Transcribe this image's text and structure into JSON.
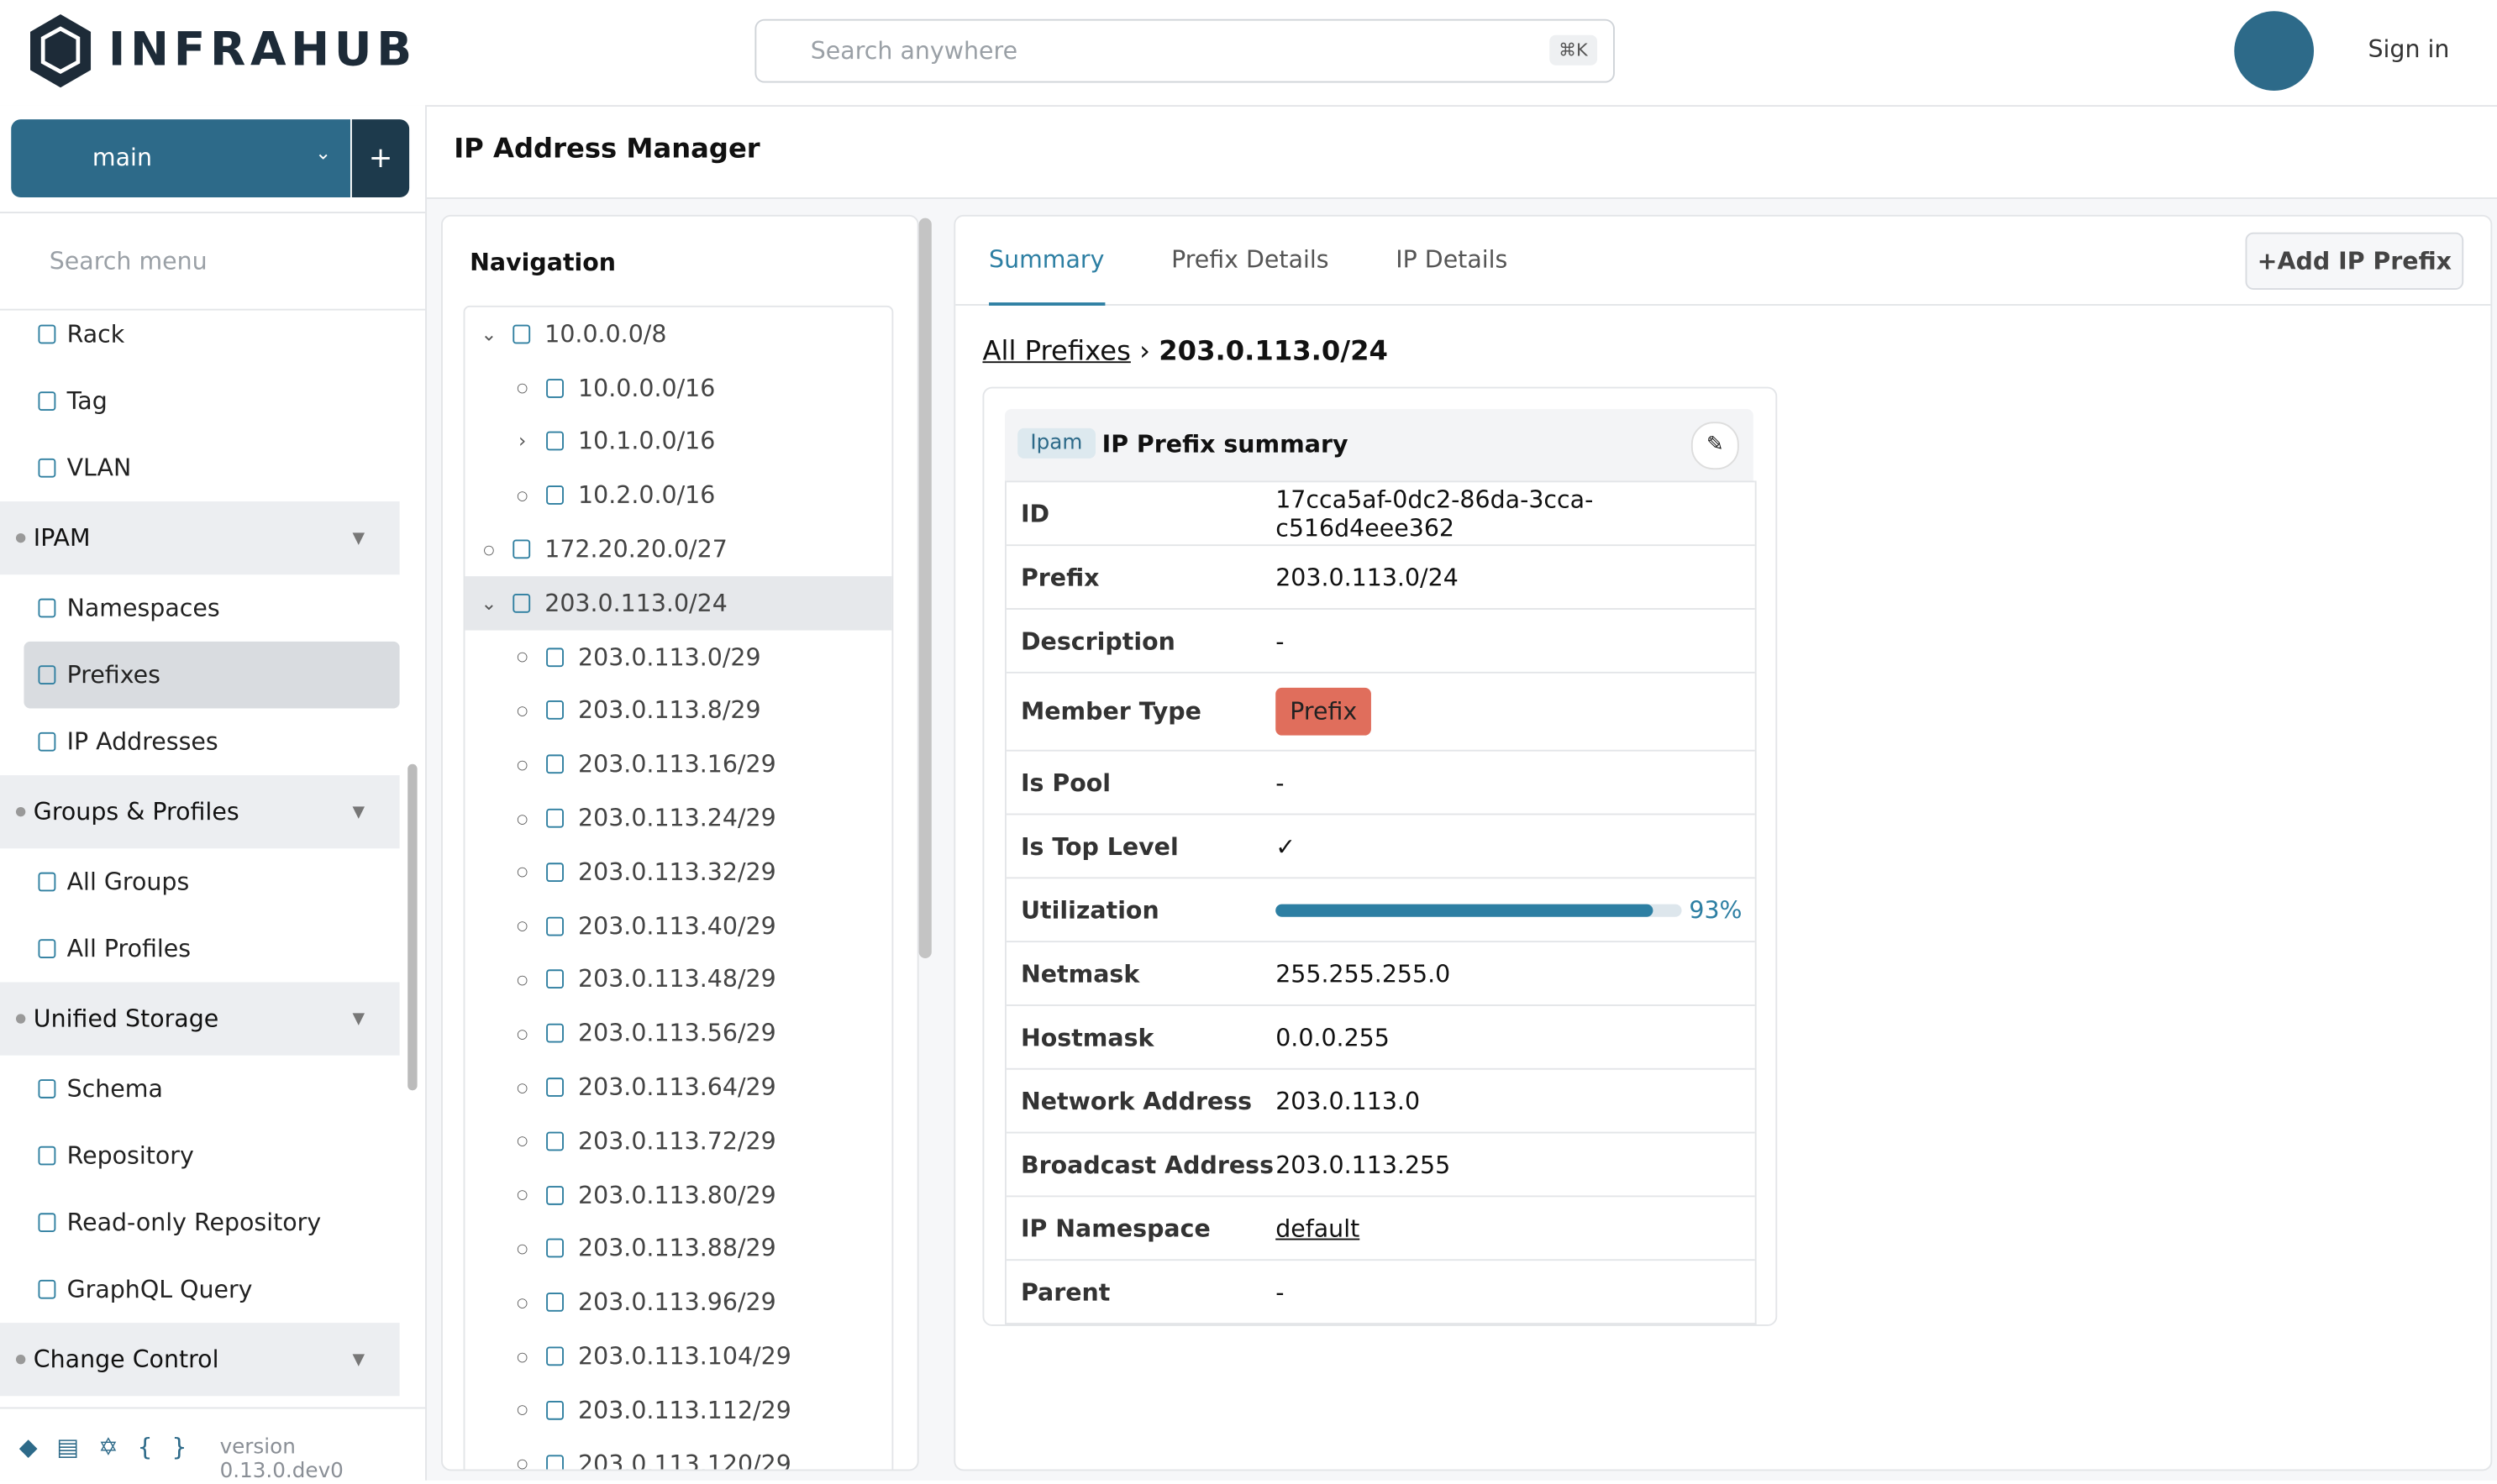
{
  "header": {
    "logo": "INFRAHUB",
    "search_placeholder": "Search anywhere",
    "search_shortcut": "⌘K",
    "sign_in": "Sign in"
  },
  "branch": {
    "name": "main"
  },
  "sidebar": {
    "search_placeholder": "Search menu",
    "items": [
      {
        "label": "Rack",
        "kind": "item"
      },
      {
        "label": "Tag",
        "kind": "item"
      },
      {
        "label": "VLAN",
        "kind": "item"
      },
      {
        "label": "IPAM",
        "kind": "group"
      },
      {
        "label": "Namespaces",
        "kind": "item"
      },
      {
        "label": "Prefixes",
        "kind": "item",
        "selected": true
      },
      {
        "label": "IP Addresses",
        "kind": "item"
      },
      {
        "label": "Groups & Profiles",
        "kind": "group"
      },
      {
        "label": "All Groups",
        "kind": "item"
      },
      {
        "label": "All Profiles",
        "kind": "item"
      },
      {
        "label": "Unified Storage",
        "kind": "group"
      },
      {
        "label": "Schema",
        "kind": "item"
      },
      {
        "label": "Repository",
        "kind": "item"
      },
      {
        "label": "Read-only Repository",
        "kind": "item"
      },
      {
        "label": "GraphQL Query",
        "kind": "item"
      },
      {
        "label": "Change Control",
        "kind": "group"
      }
    ],
    "version": "version 0.13.0.dev0"
  },
  "page_title": "IP Address Manager",
  "navigation": {
    "title": "Navigation",
    "tree": [
      {
        "label": "10.0.0.0/8",
        "level": 0,
        "toggle": "open"
      },
      {
        "label": "10.0.0.0/16",
        "level": 1,
        "toggle": "leaf"
      },
      {
        "label": "10.1.0.0/16",
        "level": 1,
        "toggle": "closed"
      },
      {
        "label": "10.2.0.0/16",
        "level": 1,
        "toggle": "leaf"
      },
      {
        "label": "172.20.20.0/27",
        "level": 0,
        "toggle": "leaf"
      },
      {
        "label": "203.0.113.0/24",
        "level": 0,
        "toggle": "open",
        "selected": true
      },
      {
        "label": "203.0.113.0/29",
        "level": 1,
        "toggle": "leaf"
      },
      {
        "label": "203.0.113.8/29",
        "level": 1,
        "toggle": "leaf"
      },
      {
        "label": "203.0.113.16/29",
        "level": 1,
        "toggle": "leaf"
      },
      {
        "label": "203.0.113.24/29",
        "level": 1,
        "toggle": "leaf"
      },
      {
        "label": "203.0.113.32/29",
        "level": 1,
        "toggle": "leaf"
      },
      {
        "label": "203.0.113.40/29",
        "level": 1,
        "toggle": "leaf"
      },
      {
        "label": "203.0.113.48/29",
        "level": 1,
        "toggle": "leaf"
      },
      {
        "label": "203.0.113.56/29",
        "level": 1,
        "toggle": "leaf"
      },
      {
        "label": "203.0.113.64/29",
        "level": 1,
        "toggle": "leaf"
      },
      {
        "label": "203.0.113.72/29",
        "level": 1,
        "toggle": "leaf"
      },
      {
        "label": "203.0.113.80/29",
        "level": 1,
        "toggle": "leaf"
      },
      {
        "label": "203.0.113.88/29",
        "level": 1,
        "toggle": "leaf"
      },
      {
        "label": "203.0.113.96/29",
        "level": 1,
        "toggle": "leaf"
      },
      {
        "label": "203.0.113.104/29",
        "level": 1,
        "toggle": "leaf"
      },
      {
        "label": "203.0.113.112/29",
        "level": 1,
        "toggle": "leaf"
      },
      {
        "label": "203.0.113.120/29",
        "level": 1,
        "toggle": "leaf"
      }
    ]
  },
  "tabs": [
    "Summary",
    "Prefix Details",
    "IP Details"
  ],
  "add_button": "Add IP Prefix",
  "breadcrumb": {
    "root": "All Prefixes",
    "current": "203.0.113.0/24"
  },
  "summary": {
    "badge": "Ipam",
    "title": "IP Prefix summary",
    "rows": [
      {
        "label": "ID",
        "value": "17cca5af-0dc2-86da-3cca-c516d4eee362"
      },
      {
        "label": "Prefix",
        "value": "203.0.113.0/24"
      },
      {
        "label": "Description",
        "value": "-"
      },
      {
        "label": "Member Type",
        "value": "Prefix",
        "style": "badge"
      },
      {
        "label": "Is Pool",
        "value": "-"
      },
      {
        "label": "Is Top Level",
        "value": "✓"
      },
      {
        "label": "Utilization",
        "value": 93,
        "value_label": "93%",
        "style": "progress"
      },
      {
        "label": "Netmask",
        "value": "255.255.255.0"
      },
      {
        "label": "Hostmask",
        "value": "0.0.0.255"
      },
      {
        "label": "Network Address",
        "value": "203.0.113.0"
      },
      {
        "label": "Broadcast Address",
        "value": "203.0.113.255"
      },
      {
        "label": "IP Namespace",
        "value": "default",
        "style": "link"
      },
      {
        "label": "Parent",
        "value": "-"
      }
    ]
  }
}
